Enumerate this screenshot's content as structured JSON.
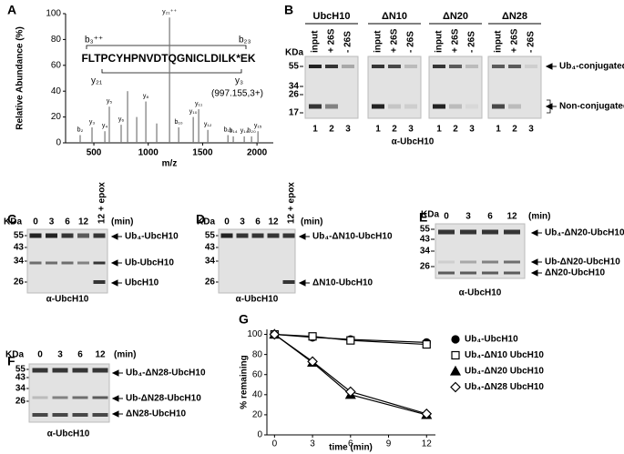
{
  "panel_labels": [
    "A",
    "B",
    "C",
    "D",
    "E",
    "F",
    "G"
  ],
  "chart_data": [
    {
      "type": "spectrum",
      "xlabel": "m/z",
      "ylabel": "Relative Abundance (%)",
      "x": [
        374,
        483,
        601,
        642,
        751,
        810,
        894,
        978,
        1078,
        1196,
        1280,
        1414,
        1464,
        1548,
        1733,
        1782,
        1883,
        1950,
        2009
      ],
      "values": [
        6,
        12,
        9,
        28,
        14,
        40,
        20,
        32,
        15,
        97,
        12,
        20,
        26,
        10,
        6,
        5,
        5,
        5,
        9
      ],
      "peak_labels": [
        "b₂",
        "y₃",
        "y₄",
        "y₅",
        "y₆",
        null,
        null,
        "y₈",
        null,
        "y₂₁⁺⁺",
        "b₁₀",
        "y₁₀",
        "y₁₁",
        "y₁₂",
        "b₁₃",
        "b₁₄",
        "y₁₄",
        "b₂₀",
        "y₁₅"
      ],
      "xlim": [
        240,
        2150
      ],
      "xticks": [
        500,
        1000,
        1500,
        2000
      ],
      "ylim": [
        0,
        100
      ],
      "yticks": [
        0,
        20,
        40,
        60,
        80,
        100
      ],
      "color": "#777777",
      "sequence": "FLTPCYHPNVDTQGNICLDILK*EK",
      "fragments": [
        "b₃⁺⁺",
        "b₂₃",
        "y₂₁",
        "y₃"
      ],
      "precursor": "(997.155,3+)"
    },
    {
      "type": "line",
      "xlabel": "time (min)",
      "ylabel": "% remaining",
      "x": [
        0,
        3,
        6,
        12
      ],
      "xlim": [
        -0.6,
        12.7
      ],
      "xticks": [
        0,
        3,
        6,
        9,
        12
      ],
      "ylim": [
        0,
        105
      ],
      "yticks": [
        0,
        20,
        40,
        60,
        80,
        100
      ],
      "series": [
        {
          "name": "Ub₄-UbcH10",
          "color": "#000000",
          "marker": "circle-filled",
          "values": [
            100,
            97,
            95,
            92
          ]
        },
        {
          "name": "Ub₄-ΔN10 UbcH10",
          "color": "#000000",
          "marker": "square-open",
          "values": [
            100,
            98,
            94,
            90
          ]
        },
        {
          "name": "Ub₄-ΔN20 UbcH10",
          "color": "#000000",
          "marker": "triangle-filled",
          "values": [
            100,
            72,
            40,
            20
          ]
        },
        {
          "name": "Ub₄-ΔN28 UbcH10",
          "color": "#000000",
          "marker": "diamond-open",
          "values": [
            100,
            73,
            43,
            21
          ]
        }
      ]
    }
  ],
  "blots": {
    "B": {
      "unit": "KDa",
      "markers": [
        55,
        34,
        26,
        17
      ],
      "panels": [
        "UbcH10",
        "ΔN10",
        "ΔN20",
        "ΔN28"
      ],
      "lanes": [
        "input",
        "+ 26S",
        "- 26S"
      ],
      "lane_numbers": [
        "1",
        "2",
        "3"
      ],
      "bands": [
        "Ub₄-conjugated",
        "Non-conjugated"
      ],
      "antibody": "α-UbcH10"
    },
    "C": {
      "unit": "KDa",
      "markers": [
        55,
        43,
        34,
        26
      ],
      "lanes": [
        "0",
        "3",
        "6",
        "12",
        "12 + epox"
      ],
      "time_unit": "(min)",
      "bands": [
        "Ub₄-UbcH10",
        "Ub-UbcH10",
        "UbcH10"
      ],
      "antibody": "α-UbcH10"
    },
    "D": {
      "unit": "KDa",
      "markers": [
        55,
        43,
        34,
        26
      ],
      "lanes": [
        "0",
        "3",
        "6",
        "12",
        "12 + epox"
      ],
      "time_unit": "(min)",
      "bands": [
        "Ub₄-ΔN10-UbcH10",
        "ΔN10-UbcH10"
      ],
      "antibody": "α-UbcH10"
    },
    "E": {
      "unit": "KDa",
      "markers": [
        55,
        43,
        34,
        26
      ],
      "lanes": [
        "0",
        "3",
        "6",
        "12"
      ],
      "time_unit": "(min)",
      "bands": [
        "Ub₄-ΔN20-UbcH10",
        "Ub-ΔN20-UbcH10",
        "ΔN20-UbcH10"
      ],
      "antibody": "α-UbcH10"
    },
    "F": {
      "unit": "KDa",
      "markers": [
        55,
        43,
        34,
        26
      ],
      "lanes": [
        "0",
        "3",
        "6",
        "12"
      ],
      "time_unit": "(min)",
      "bands": [
        "Ub₄-ΔN28-UbcH10",
        "Ub-ΔN28-UbcH10",
        "ΔN28-UbcH10"
      ],
      "antibody": "α-UbcH10"
    }
  }
}
